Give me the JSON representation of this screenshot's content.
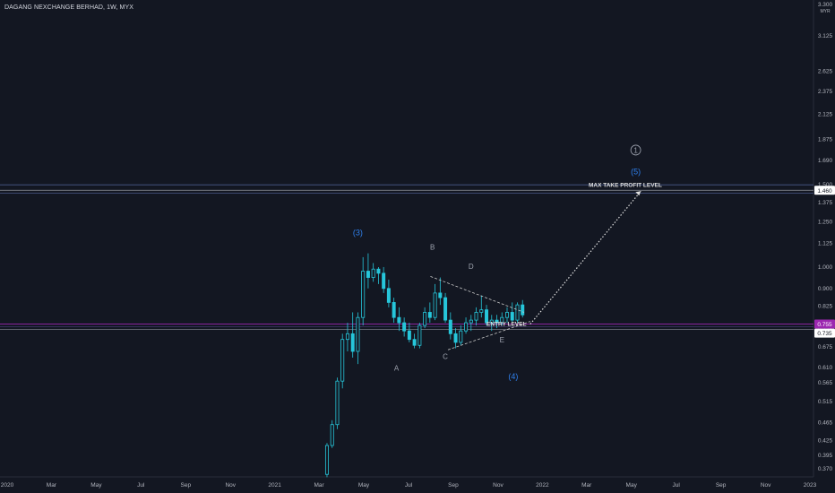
{
  "header": {
    "title": "DAGANG NEXCHANGE BERHAD, 1W, MYX"
  },
  "colors": {
    "background": "#131722",
    "candle": "#26c6da",
    "text": "#b2b5be",
    "wave": "#2f80ed",
    "line": "#e0e0e0",
    "tag_bg": "#ffffff",
    "tag_fg": "#131722"
  },
  "chart_data": {
    "type": "candlestick",
    "title": "DAGANG NEXCHANGE BERHAD, 1W, MYX",
    "y_scale": "log",
    "currency": "MYR",
    "ylim": [
      0.37,
      3.6
    ],
    "y_ticks": [
      "3.300",
      "3.125",
      "2.625",
      "2.375",
      "2.125",
      "1.875",
      "1.690",
      "1.500",
      "1.375",
      "1.250",
      "1.125",
      "1.000",
      "0.900",
      "0.825",
      "0.735",
      "0.675",
      "0.610",
      "0.565",
      "0.515",
      "0.465",
      "0.425",
      "0.395",
      "0.370"
    ],
    "x_ticks": [
      "2020",
      "Mar",
      "May",
      "Jul",
      "Sep",
      "Nov",
      "2021",
      "Mar",
      "May",
      "Jul",
      "Sep",
      "Nov",
      "2022",
      "Mar",
      "May",
      "Jul",
      "Sep",
      "Nov",
      "2023"
    ],
    "ohlc_weekly": [
      [
        0.36,
        0.42,
        0.355,
        0.415
      ],
      [
        0.415,
        0.47,
        0.41,
        0.46
      ],
      [
        0.46,
        0.58,
        0.45,
        0.57
      ],
      [
        0.57,
        0.72,
        0.55,
        0.7
      ],
      [
        0.7,
        0.76,
        0.66,
        0.72
      ],
      [
        0.72,
        0.8,
        0.64,
        0.66
      ],
      [
        0.66,
        0.8,
        0.62,
        0.78
      ],
      [
        0.78,
        1.05,
        0.75,
        0.98
      ],
      [
        0.98,
        1.07,
        0.9,
        0.95
      ],
      [
        0.95,
        1.02,
        0.93,
        0.99
      ],
      [
        0.99,
        1.0,
        0.92,
        0.97
      ],
      [
        0.97,
        1.0,
        0.88,
        0.9
      ],
      [
        0.9,
        0.94,
        0.82,
        0.84
      ],
      [
        0.84,
        0.86,
        0.76,
        0.78
      ],
      [
        0.78,
        0.82,
        0.73,
        0.76
      ],
      [
        0.76,
        0.78,
        0.71,
        0.73
      ],
      [
        0.73,
        0.76,
        0.69,
        0.7
      ],
      [
        0.7,
        0.72,
        0.67,
        0.68
      ],
      [
        0.68,
        0.76,
        0.67,
        0.75
      ],
      [
        0.75,
        0.82,
        0.74,
        0.8
      ],
      [
        0.8,
        0.84,
        0.76,
        0.78
      ],
      [
        0.78,
        0.92,
        0.77,
        0.88
      ],
      [
        0.88,
        0.95,
        0.83,
        0.86
      ],
      [
        0.86,
        0.88,
        0.76,
        0.77
      ],
      [
        0.77,
        0.8,
        0.7,
        0.72
      ],
      [
        0.72,
        0.74,
        0.67,
        0.69
      ],
      [
        0.69,
        0.75,
        0.68,
        0.73
      ],
      [
        0.73,
        0.78,
        0.72,
        0.76
      ],
      [
        0.76,
        0.79,
        0.73,
        0.77
      ],
      [
        0.77,
        0.82,
        0.75,
        0.8
      ],
      [
        0.8,
        0.87,
        0.78,
        0.81
      ],
      [
        0.81,
        0.83,
        0.75,
        0.76
      ],
      [
        0.76,
        0.79,
        0.73,
        0.77
      ],
      [
        0.77,
        0.79,
        0.74,
        0.76
      ],
      [
        0.76,
        0.8,
        0.75,
        0.78
      ],
      [
        0.78,
        0.82,
        0.76,
        0.8
      ],
      [
        0.8,
        0.84,
        0.76,
        0.77
      ],
      [
        0.77,
        0.84,
        0.76,
        0.83
      ],
      [
        0.83,
        0.85,
        0.78,
        0.79
      ]
    ],
    "horizontal_levels": [
      {
        "label": "MAX TAKE PROFIT LEVEL",
        "price": "1.460"
      },
      {
        "label": "ENTRY LEVEL",
        "price": "0.755"
      }
    ],
    "price_tags": [
      "1.460",
      "0.755",
      "0.735"
    ],
    "wave_labels": [
      {
        "text": "(3)",
        "kind": "wave"
      },
      {
        "text": "(4)",
        "kind": "wave"
      },
      {
        "text": "(5)",
        "kind": "wave"
      },
      {
        "text": "1",
        "kind": "circled"
      },
      {
        "text": "A",
        "kind": "sub"
      },
      {
        "text": "B",
        "kind": "sub"
      },
      {
        "text": "C",
        "kind": "sub"
      },
      {
        "text": "D",
        "kind": "sub"
      },
      {
        "text": "E",
        "kind": "sub"
      }
    ],
    "projection": {
      "from": "0.755",
      "to": "1.460"
    }
  }
}
